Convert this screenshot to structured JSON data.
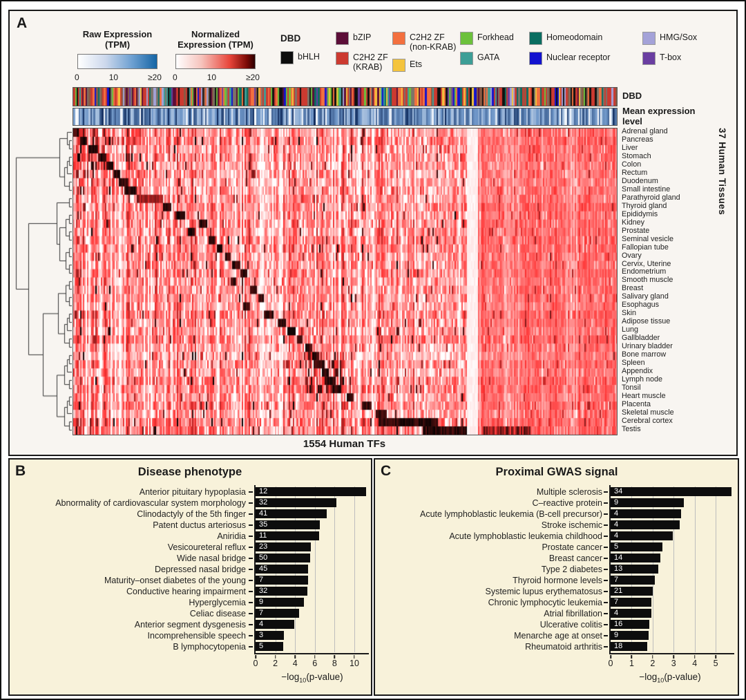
{
  "figure": {
    "panel_a_label": "A",
    "panel_b_label": "B",
    "panel_c_label": "C"
  },
  "panel_a": {
    "legend_raw": {
      "title_line1": "Raw Expression",
      "title_line2": "(TPM)",
      "tick_min": "0",
      "tick_mid": "10",
      "tick_max": "≥20",
      "color_start": "#ffffff",
      "color_end": "#1565a5"
    },
    "legend_norm": {
      "title_line1": "Normalized",
      "title_line2": "Expression (TPM)",
      "tick_min": "0",
      "tick_mid": "10",
      "tick_max": "≥20",
      "color_start": "#ffffff",
      "color_end": "#2c0000"
    },
    "dbd_legend": {
      "title": "DBD",
      "first_entry": {
        "label": "bHLH",
        "color": "#0d0d0d"
      },
      "columns": [
        [
          {
            "label": "bZIP",
            "color": "#5c0e38"
          },
          {
            "label": "C2H2 ZF",
            "label2": "(KRAB)",
            "color": "#cc3a30"
          }
        ],
        [
          {
            "label": "C2H2 ZF",
            "label2": "(non-KRAB)",
            "color": "#f3703f"
          },
          {
            "label": "Ets",
            "color": "#f4c43d"
          }
        ],
        [
          {
            "label": "Forkhead",
            "color": "#6cc13c"
          },
          {
            "label": "GATA",
            "color": "#3d9e96"
          }
        ],
        [
          {
            "label": "Homeodomain",
            "color": "#0a6e61"
          },
          {
            "label": "Nuclear receptor",
            "color": "#1313cf"
          }
        ],
        [
          {
            "label": "HMG/Sox",
            "color": "#a4a2d8"
          },
          {
            "label": "T-box",
            "color": "#6a3ea1"
          }
        ]
      ]
    },
    "annotation_dbd": "DBD",
    "annotation_mean_line1": "Mean expression",
    "annotation_mean_line2": "level",
    "tissues": [
      "Adrenal gland",
      "Pancreas",
      "Liver",
      "Stomach",
      "Colon",
      "Rectum",
      "Duodenum",
      "Small intestine",
      "Parathyroid gland",
      "Thyroid gland",
      "Epididymis",
      "Kidney",
      "Prostate",
      "Seminal vesicle",
      "Fallopian tube",
      "Ovary",
      "Cervix, Uterine",
      "Endometrium",
      "Smooth muscle",
      "Breast",
      "Salivary gland",
      "Esophagus",
      "Skin",
      "Adipose tissue",
      "Lung",
      "Gallbladder",
      "Urinary bladder",
      "Bone marrow",
      "Spleen",
      "Appendix",
      "Lymph node",
      "Tonsil",
      "Heart muscle",
      "Placenta",
      "Skeletal muscle",
      "Cerebral cortex",
      "Testis"
    ],
    "right_axis_label": "37 Human Tissues",
    "bottom_label": "1554 Human TFs"
  },
  "chart_data": [
    {
      "type": "heatmap",
      "n_cols": 1554,
      "n_rows": 37,
      "cols_label": "1554 Human TFs",
      "rows_label": "37 Human Tissues",
      "annotation_bars": [
        "DBD",
        "Mean expression level"
      ],
      "seed": 42,
      "white_band": [
        0.722,
        0.742
      ],
      "cluster_band_centers": [
        0.004,
        0.018,
        0.036,
        0.052,
        0.066,
        0.079,
        0.091,
        0.104,
        0.14,
        0.172,
        0.196,
        0.238,
        0.216,
        0.254,
        0.268,
        0.283,
        0.298,
        0.312,
        0.292,
        0.33,
        0.344,
        0.315,
        0.358,
        0.382,
        0.4,
        0.415,
        0.432,
        0.444,
        0.452,
        0.462,
        0.472,
        0.482,
        0.508,
        0.538,
        0.565,
        0.615,
        0.681
      ],
      "cluster_band_widths": [
        0.01,
        0.014,
        0.018,
        0.014,
        0.014,
        0.012,
        0.016,
        0.022,
        0.046,
        0.016,
        0.018,
        0.012,
        0.014,
        0.014,
        0.012,
        0.012,
        0.014,
        0.012,
        0.01,
        0.014,
        0.012,
        0.01,
        0.016,
        0.014,
        0.014,
        0.012,
        0.012,
        0.014,
        0.016,
        0.014,
        0.016,
        0.016,
        0.014,
        0.016,
        0.022,
        0.11,
        0.082
      ]
    },
    {
      "type": "bar",
      "title": "Disease phenotype",
      "categories": [
        "Anterior pituitary hypoplasia",
        "Abnormality of cardiovascular system morphology",
        "Clinodactyly of the 5th finger",
        "Patent ductus arteriosus",
        "Aniridia",
        "Vesicoureteral reflux",
        "Wide nasal bridge",
        "Depressed nasal bridge",
        "Maturity–onset diabetes of the young",
        "Conductive hearing impairment",
        "Hyperglycemia",
        "Celiac disease",
        "Anterior segment dysgenesis",
        "Incomprehensible speech",
        "B lymphocytopenia"
      ],
      "counts": [
        12,
        32,
        41,
        35,
        11,
        23,
        50,
        45,
        7,
        32,
        9,
        7,
        4,
        3,
        5
      ],
      "values": [
        11.2,
        8.2,
        7.2,
        6.5,
        6.4,
        5.6,
        5.5,
        5.35,
        5.3,
        5.25,
        4.9,
        4.4,
        3.9,
        2.85,
        2.8
      ],
      "xticks": [
        0,
        2,
        4,
        6,
        8,
        10
      ],
      "xmax": 11.4,
      "xlabel_prefix": "−log",
      "xlabel_sub": "10",
      "xlabel_suffix": "(p-value)"
    },
    {
      "type": "bar",
      "title": "Proximal GWAS signal",
      "categories": [
        "Multiple sclerosis",
        "C–reactive protein",
        "Acute lymphoblastic leukemia (B-cell precursor)",
        "Stroke ischemic",
        "Acute lymphoblastic leukemia childhood",
        "Prostate cancer",
        "Breast cancer",
        "Type 2 diabetes",
        "Thyroid hormone levels",
        "Systemic lupus erythematosus",
        "Chronic lymphocytic leukemia",
        "Atrial fibrillation",
        "Ulcerative colitis",
        "Menarche age at onset",
        "Rheumatoid arthritis"
      ],
      "counts": [
        34,
        9,
        4,
        4,
        4,
        5,
        14,
        13,
        7,
        21,
        7,
        4,
        16,
        9,
        18
      ],
      "values": [
        5.75,
        3.5,
        3.35,
        3.3,
        2.95,
        2.45,
        2.35,
        2.28,
        2.1,
        2.0,
        1.95,
        1.93,
        1.85,
        1.8,
        1.75
      ],
      "xticks": [
        0,
        1,
        2,
        3,
        4,
        5
      ],
      "xmax": 5.85,
      "xlabel_prefix": "−log",
      "xlabel_sub": "10",
      "xlabel_suffix": "(p-value)"
    }
  ]
}
